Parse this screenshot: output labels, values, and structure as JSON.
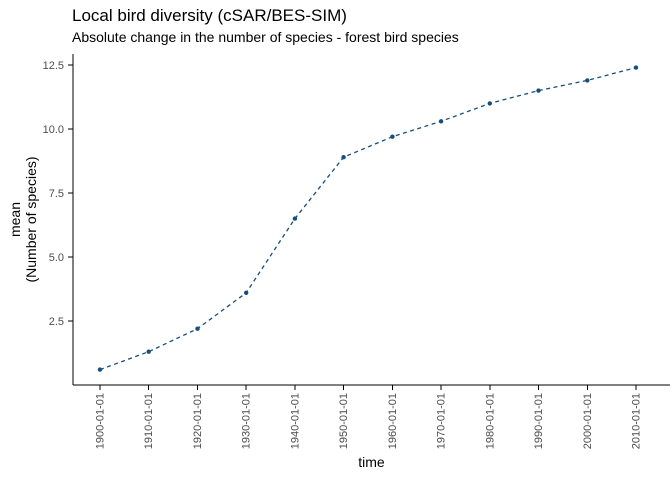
{
  "title": "Local bird diversity (cSAR/BES-SIM)",
  "subtitle": "Absolute change in the number of species - forest bird species",
  "chart_data": {
    "type": "line",
    "line_style": "dashed",
    "marker": "point",
    "title": "Local bird diversity (cSAR/BES-SIM)",
    "subtitle": "Absolute change in the number of species - forest bird species",
    "xlabel": "time",
    "ylabel_lines": [
      "mean",
      "(Number of species)"
    ],
    "x": [
      "1900-01-01",
      "1910-01-01",
      "1920-01-01",
      "1930-01-01",
      "1940-01-01",
      "1950-01-01",
      "1960-01-01",
      "1970-01-01",
      "1980-01-01",
      "1990-01-01",
      "2000-01-01",
      "2010-01-01"
    ],
    "x_years": [
      1900,
      1910,
      1920,
      1930,
      1940,
      1950,
      1960,
      1970,
      1980,
      1990,
      2000,
      2010
    ],
    "series": [
      {
        "name": "mean",
        "values": [
          0.6,
          1.3,
          2.2,
          3.6,
          6.5,
          8.9,
          9.7,
          10.3,
          11.0,
          11.5,
          11.9,
          12.4
        ],
        "color": "#174e7c"
      }
    ],
    "xticks": [
      "1900-01-01",
      "1910-01-01",
      "1920-01-01",
      "1930-01-01",
      "1940-01-01",
      "1950-01-01",
      "1960-01-01",
      "1970-01-01",
      "1980-01-01",
      "1990-01-01",
      "2000-01-01",
      "2010-01-01"
    ],
    "yticks": [
      "2.5",
      "5.0",
      "7.5",
      "10.0",
      "12.5"
    ],
    "ylim": [
      0,
      12.93
    ],
    "x_year_range": [
      1900,
      2010
    ],
    "grid": false,
    "legend": "none",
    "axis_color": "#000000",
    "tick_label_color": "#4d4d4d",
    "axis_title_color": "#000000",
    "background_color": "#ffffff"
  }
}
